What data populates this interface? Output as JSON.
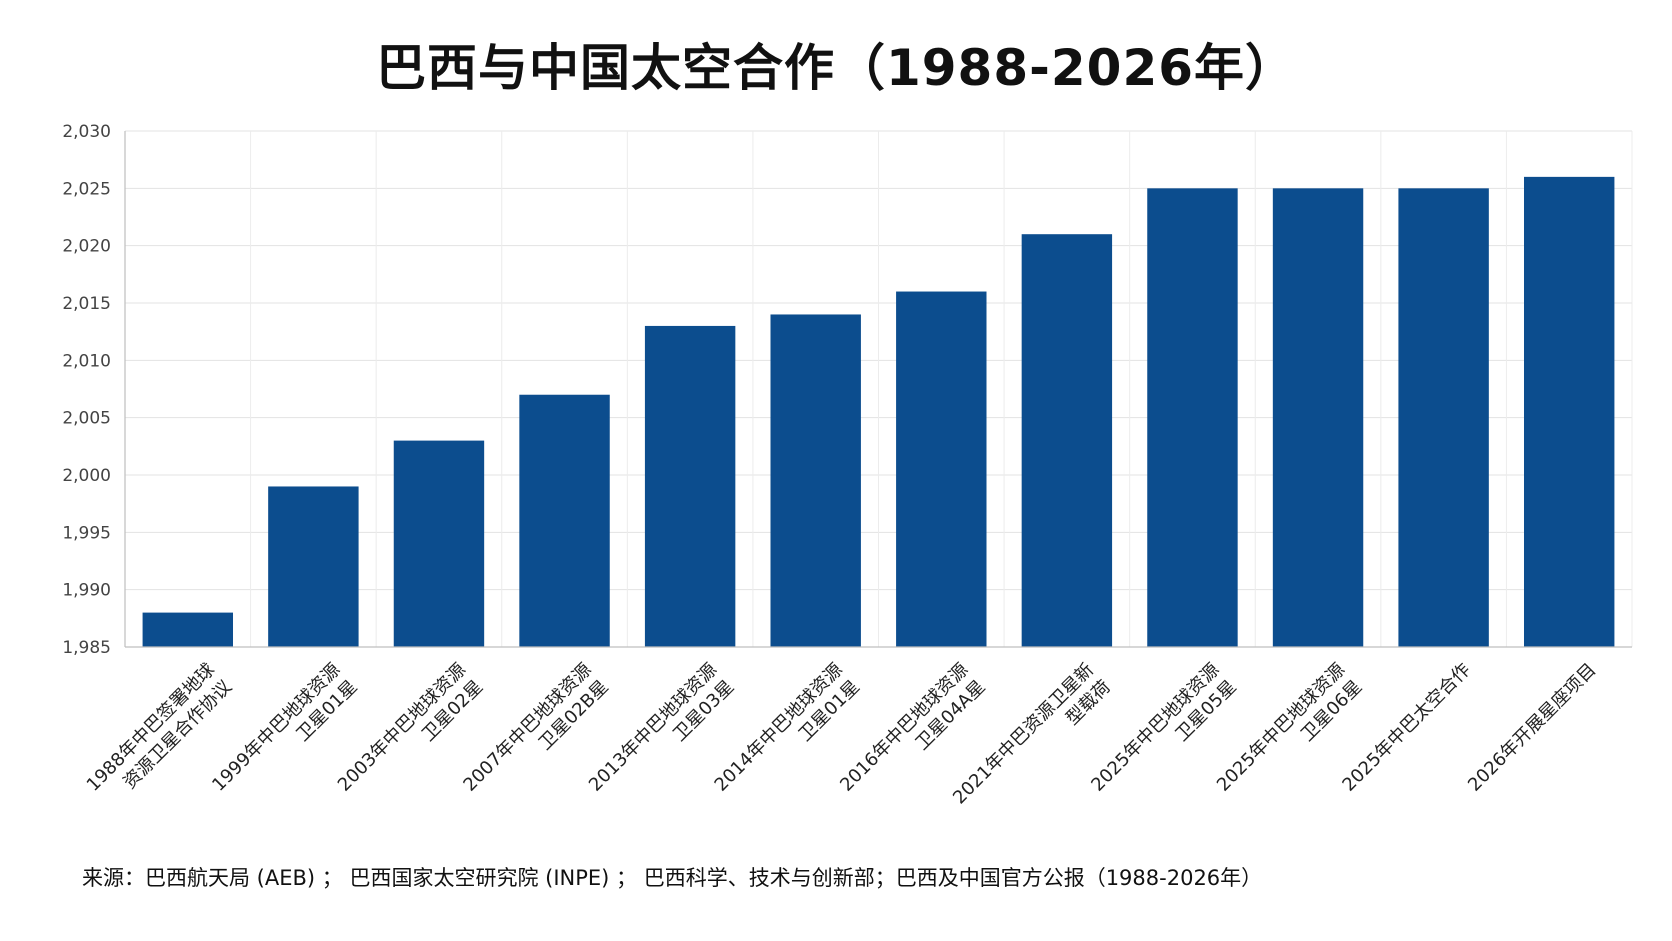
{
  "chart_data": {
    "type": "bar",
    "title": "巴西与中国太空合作（1988-2026年）",
    "source": "来源：巴西航天局 (AEB) ； 巴西国家太空研究院 (INPE) ； 巴西科学、技术与创新部；巴西及中国官方公报（1988-2026年）",
    "xlabel": "",
    "ylabel": "",
    "ylim": [
      1985,
      2030
    ],
    "ytick_step": 5,
    "grid": true,
    "bar_color": "#0c4d8e",
    "categories": [
      [
        "1988年中巴签署地球",
        "资源卫星合作协议"
      ],
      [
        "1999年中巴地球资源",
        "卫星01星"
      ],
      [
        "2003年中巴地球资源",
        "卫星02星"
      ],
      [
        "2007年中巴地球资源",
        "卫星02B星"
      ],
      [
        "2013年中巴地球资源",
        "卫星03星"
      ],
      [
        "2014年中巴地球资源",
        "卫星01星"
      ],
      [
        "2016年中巴地球资源",
        "卫星04A星"
      ],
      [
        "2021年中巴资源卫星新",
        "型载荷"
      ],
      [
        "2025年中巴地球资源",
        "卫星05星"
      ],
      [
        "2025年中巴地球资源",
        "卫星06星"
      ],
      [
        "2025年中巴太空合作"
      ],
      [
        "2026年开展星座项目"
      ]
    ],
    "values": [
      1988,
      1999,
      2003,
      2007,
      2013,
      2014,
      2016,
      2021,
      2025,
      2025,
      2025,
      2026
    ]
  }
}
